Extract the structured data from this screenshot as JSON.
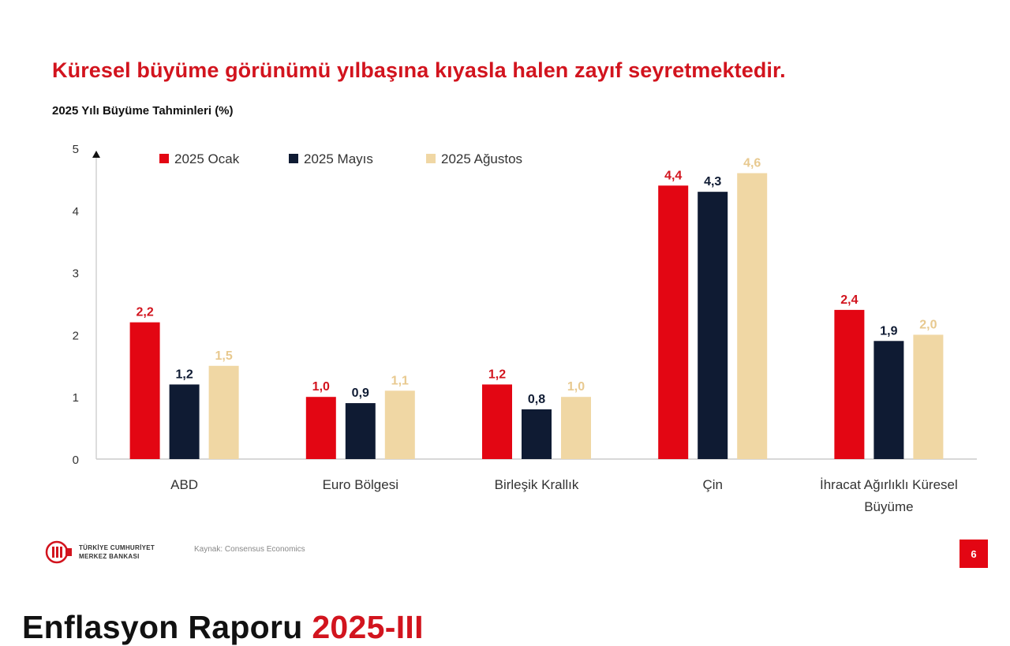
{
  "headline": "Küresel büyüme görünümü yılbaşına kıyasla halen zayıf seyretmektedir.",
  "subtitle": "2025 Yılı Büyüme Tahminleri (%)",
  "chart_data": {
    "type": "bar",
    "title": "",
    "xlabel": "",
    "ylabel": "",
    "ylim": [
      0,
      5
    ],
    "yticks": [
      "0",
      "1",
      "2",
      "3",
      "4",
      "5"
    ],
    "grid": false,
    "legend_position": "top-left",
    "categories": [
      [
        "ABD"
      ],
      [
        "Euro Bölgesi"
      ],
      [
        "Birleşik Krallık"
      ],
      [
        "Çin"
      ],
      [
        "İhracat Ağırlıklı Küresel",
        "Büyüme"
      ]
    ],
    "series": [
      {
        "name": "2025 Ocak",
        "color": "#e30613",
        "label_color": "#d2141e",
        "values": [
          2.2,
          1.0,
          1.2,
          4.4,
          2.4
        ],
        "labels": [
          "2,2",
          "1,0",
          "1,2",
          "4,4",
          "2,4"
        ]
      },
      {
        "name": "2025 Mayıs",
        "color": "#0f1b33",
        "label_color": "#0f1b33",
        "values": [
          1.2,
          0.9,
          0.8,
          4.3,
          1.9
        ],
        "labels": [
          "1,2",
          "0,9",
          "0,8",
          "4,3",
          "1,9"
        ]
      },
      {
        "name": "2025 Ağustos",
        "color": "#f0d7a4",
        "label_color": "#e8c98f",
        "values": [
          1.5,
          1.1,
          1.0,
          4.6,
          2.0
        ],
        "labels": [
          "1,5",
          "1,1",
          "1,0",
          "4,6",
          "2,0"
        ]
      }
    ]
  },
  "footer": {
    "logo_line1": "TÜRKİYE CUMHURİYET",
    "logo_line2": "MERKEZ BANKASI",
    "source": "Kaynak: Consensus Economics",
    "page_number": "6",
    "report_title": "Enflasyon Raporu",
    "report_year": "2025-III"
  }
}
